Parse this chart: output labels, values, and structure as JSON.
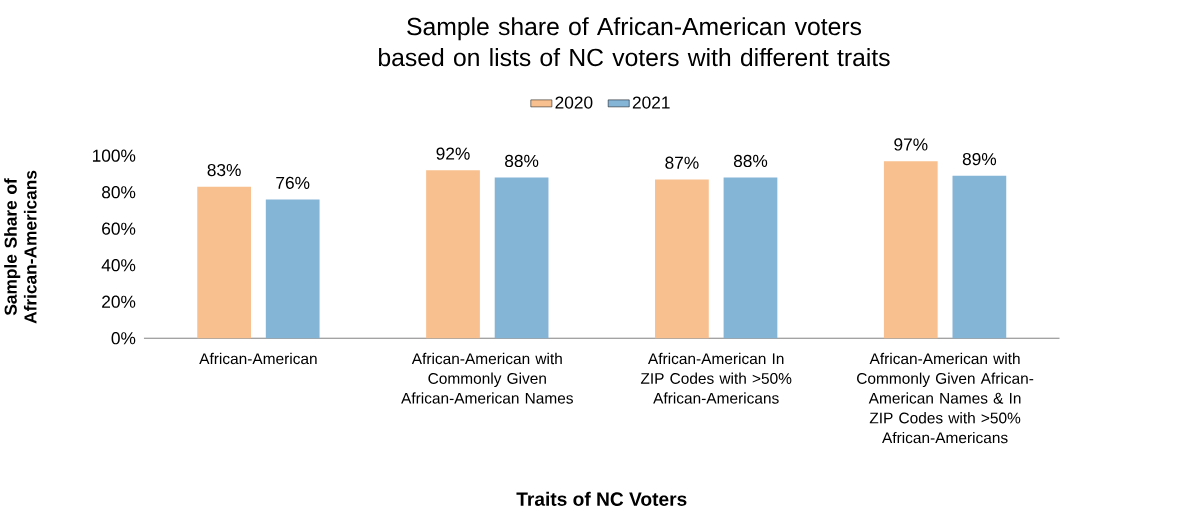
{
  "chart_data": {
    "type": "bar",
    "title": "Sample share of African-American voters based on lists of NC voters with different traits",
    "xlabel": "Traits of NC Voters",
    "ylabel": "Sample Share of African-Americans",
    "categories": [
      "African-American",
      "African-American with Commonly Given African-American Names",
      "African-American In ZIP Codes with >50% African-Americans",
      "African-American with Commonly Given African-American Names & In ZIP Codes with >50% African-Americans"
    ],
    "series": [
      {
        "name": "2020",
        "color": "#f9c08f",
        "values": [
          83,
          92,
          87,
          97
        ],
        "value_labels": [
          "83%",
          "92%",
          "87%",
          "97%"
        ]
      },
      {
        "name": "2021",
        "color": "#84b4d6",
        "values": [
          76,
          88,
          88,
          89
        ],
        "value_labels": [
          "76%",
          "88%",
          "88%",
          "89%"
        ]
      }
    ],
    "ylim": [
      0,
      100
    ],
    "yticks": [
      {
        "value": 0,
        "label": "0%"
      },
      {
        "value": 20,
        "label": "20%"
      },
      {
        "value": 40,
        "label": "40%"
      },
      {
        "value": 60,
        "label": "60%"
      },
      {
        "value": 80,
        "label": "80%"
      },
      {
        "value": 100,
        "label": "100%"
      }
    ],
    "grid": false,
    "legend": "top"
  }
}
